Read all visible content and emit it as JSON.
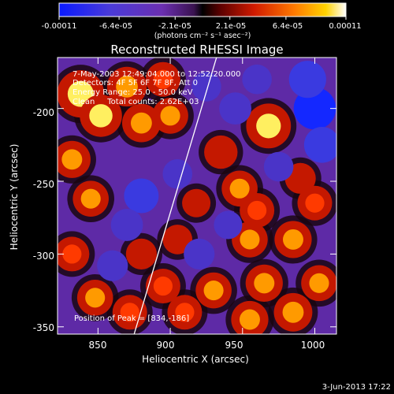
{
  "colorbar": {
    "tick_labels": [
      "-0.00011",
      "-6.4e-05",
      "-2.1e-05",
      "2.1e-05",
      "6.4e-05",
      "0.00011"
    ],
    "min": -0.00011,
    "max": 0.00011,
    "unit_label": "(photons cm⁻² s⁻¹ asec⁻²)"
  },
  "chart_data": {
    "type": "heatmap",
    "title": "Reconstructed RHESSI Image",
    "xlabel": "Heliocentric X (arcsec)",
    "ylabel": "Heliocentric Y (arcsec)",
    "xlim": [
      822,
      1015
    ],
    "ylim": [
      -355,
      -165
    ],
    "x_ticks": [
      850,
      900,
      950,
      1000
    ],
    "y_ticks": [
      -200,
      -250,
      -300,
      -350
    ],
    "annotations": [
      "7-May-2003 12:49:04.000 to 12:52:20.000",
      "Detectors: 4F 5F 6F 7F 8F, Att 0",
      "Energy Range: 25.0 - 50.0 keV",
      "Clean     Total counts: 2.62E+03"
    ],
    "peak_label": "Position of Peak = [834,-186]",
    "peak": [
      834,
      -186
    ],
    "limb_line": [
      [
        875,
        -355
      ],
      [
        932,
        -165
      ]
    ],
    "intensity_blobs": [
      {
        "x": 838,
        "y": -190,
        "value": 1.0
      },
      {
        "x": 852,
        "y": -205,
        "value": 0.8
      },
      {
        "x": 870,
        "y": -185,
        "value": 0.7
      },
      {
        "x": 880,
        "y": -210,
        "value": 0.65
      },
      {
        "x": 895,
        "y": -180,
        "value": 0.5
      },
      {
        "x": 900,
        "y": -205,
        "value": 0.55
      },
      {
        "x": 832,
        "y": -235,
        "value": 0.6
      },
      {
        "x": 845,
        "y": -262,
        "value": 0.55
      },
      {
        "x": 832,
        "y": -300,
        "value": 0.5
      },
      {
        "x": 848,
        "y": -330,
        "value": 0.55
      },
      {
        "x": 872,
        "y": -340,
        "value": 0.5
      },
      {
        "x": 895,
        "y": -322,
        "value": 0.5
      },
      {
        "x": 880,
        "y": -300,
        "value": 0.35
      },
      {
        "x": 905,
        "y": -290,
        "value": 0.3
      },
      {
        "x": 918,
        "y": -265,
        "value": 0.25
      },
      {
        "x": 935,
        "y": -230,
        "value": 0.45
      },
      {
        "x": 948,
        "y": -255,
        "value": 0.55
      },
      {
        "x": 960,
        "y": -270,
        "value": 0.5
      },
      {
        "x": 955,
        "y": -290,
        "value": 0.55
      },
      {
        "x": 968,
        "y": -212,
        "value": 0.9
      },
      {
        "x": 985,
        "y": -290,
        "value": 0.6
      },
      {
        "x": 1000,
        "y": -265,
        "value": 0.5
      },
      {
        "x": 930,
        "y": -325,
        "value": 0.55
      },
      {
        "x": 965,
        "y": -320,
        "value": 0.6
      },
      {
        "x": 985,
        "y": -340,
        "value": 0.65
      },
      {
        "x": 1003,
        "y": -320,
        "value": 0.55
      },
      {
        "x": 955,
        "y": -345,
        "value": 0.6
      },
      {
        "x": 990,
        "y": -248,
        "value": 0.35
      },
      {
        "x": 910,
        "y": -340,
        "value": 0.5
      },
      {
        "x": 880,
        "y": -260,
        "value": -0.5
      },
      {
        "x": 870,
        "y": -280,
        "value": -0.4
      },
      {
        "x": 905,
        "y": -245,
        "value": -0.3
      },
      {
        "x": 925,
        "y": -185,
        "value": -0.3
      },
      {
        "x": 945,
        "y": -200,
        "value": -0.4
      },
      {
        "x": 1000,
        "y": -200,
        "value": -0.8
      },
      {
        "x": 1005,
        "y": -225,
        "value": -0.55
      },
      {
        "x": 995,
        "y": -180,
        "value": -0.6
      },
      {
        "x": 920,
        "y": -300,
        "value": -0.35
      },
      {
        "x": 975,
        "y": -240,
        "value": -0.3
      },
      {
        "x": 940,
        "y": -280,
        "value": -0.25
      },
      {
        "x": 860,
        "y": -308,
        "value": -0.35
      },
      {
        "x": 960,
        "y": -180,
        "value": -0.3
      }
    ]
  },
  "footer": {
    "timestamp": "3-Jun-2013 17:22"
  }
}
